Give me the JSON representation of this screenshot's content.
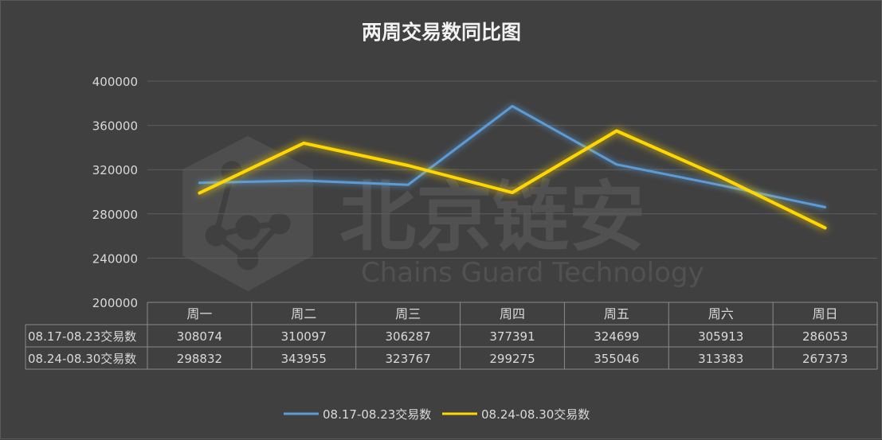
{
  "chart_data": {
    "type": "line",
    "title": "两周交易数同比图",
    "categories": [
      "周一",
      "周二",
      "周三",
      "周四",
      "周五",
      "周六",
      "周日"
    ],
    "series": [
      {
        "name": "08.17-08.23交易数",
        "color": "#5b9bd5",
        "values": [
          308074,
          310097,
          306287,
          377391,
          324699,
          305913,
          286053
        ]
      },
      {
        "name": "08.24-08.30交易数",
        "color": "#ffd700",
        "values": [
          298832,
          343955,
          323767,
          299275,
          355046,
          313383,
          267373
        ]
      }
    ],
    "yticks": [
      "400000",
      "360000",
      "320000",
      "280000",
      "240000",
      "200000"
    ],
    "ylim": [
      200000,
      400000
    ],
    "grid": true,
    "legend": "bottom",
    "data_table": true
  },
  "watermark": {
    "text_cn": "北京链安",
    "text_en": "Chains Guard Technology"
  },
  "colors": {
    "background": "#404040",
    "grid": "#5e5e5e",
    "text": "#d9d9d9",
    "title": "#f2f2f2"
  }
}
